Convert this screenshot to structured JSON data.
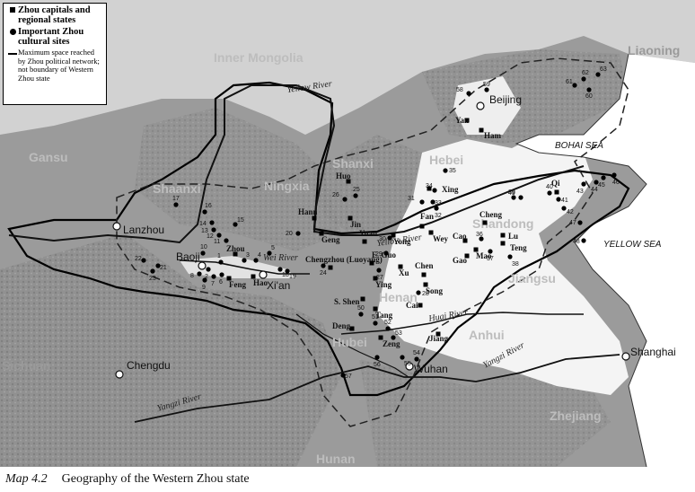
{
  "legend": {
    "capitals": "Zhou capitals and regional states",
    "sites": "Important Zhou cultural sites",
    "dashed": "Maximum space reached by Zhou political network; not boundary of Western Zhou state"
  },
  "provinces": [
    "Inner Mongolia",
    "Gansu",
    "Shaanxi",
    "Ningxia",
    "Shanxi",
    "Hebei",
    "Shandong",
    "Henan",
    "Jiangsu",
    "Anhui",
    "Hubei",
    "Sichuan",
    "Zhejiang",
    "Hunan",
    "Liaoning"
  ],
  "cities": [
    "Beijing",
    "Lanzhou",
    "Xi'an",
    "Chengdu",
    "Wuhan",
    "Shanghai",
    "Baoji"
  ],
  "seas": [
    "BOHAI SEA",
    "YELLOW SEA"
  ],
  "rivers": [
    "Yellow River",
    "Yellow River",
    "Wei River",
    "Huai River",
    "Yangzi River",
    "Yangzi River"
  ],
  "states": [
    "Yan",
    "Ham",
    "Huo",
    "Jin",
    "Hann",
    "Geng",
    "Yuan",
    "Yong",
    "Fan",
    "Wey",
    "Xing",
    "Cheng",
    "Cao",
    "Mao",
    "Lu",
    "Teng",
    "Gao",
    "Qi",
    "Zhou",
    "Feng",
    "Hao",
    "Chengzhou (Luoyang)",
    "E. Guo",
    "Xu",
    "Ying",
    "Chen",
    "Song",
    "Cai",
    "S. Shen",
    "Tang",
    "Deng",
    "Zeng",
    "Jiang"
  ],
  "site_numbers": [
    "1",
    "2",
    "3",
    "4",
    "5",
    "6",
    "7",
    "8",
    "9",
    "10",
    "11",
    "12",
    "13",
    "14",
    "15",
    "16",
    "17",
    "18",
    "19",
    "20",
    "21",
    "22",
    "23",
    "24",
    "25",
    "26",
    "27",
    "28",
    "29",
    "30",
    "31",
    "32",
    "33",
    "34",
    "35",
    "36",
    "37",
    "38",
    "39",
    "40",
    "41",
    "42",
    "43",
    "44",
    "45",
    "46",
    "47",
    "48",
    "49",
    "50",
    "51",
    "52",
    "53",
    "54",
    "55",
    "56",
    "57",
    "58",
    "59",
    "60",
    "61",
    "62",
    "63"
  ],
  "caption": {
    "label": "Map 4.2",
    "title": "Geography of the Western Zhou state"
  }
}
